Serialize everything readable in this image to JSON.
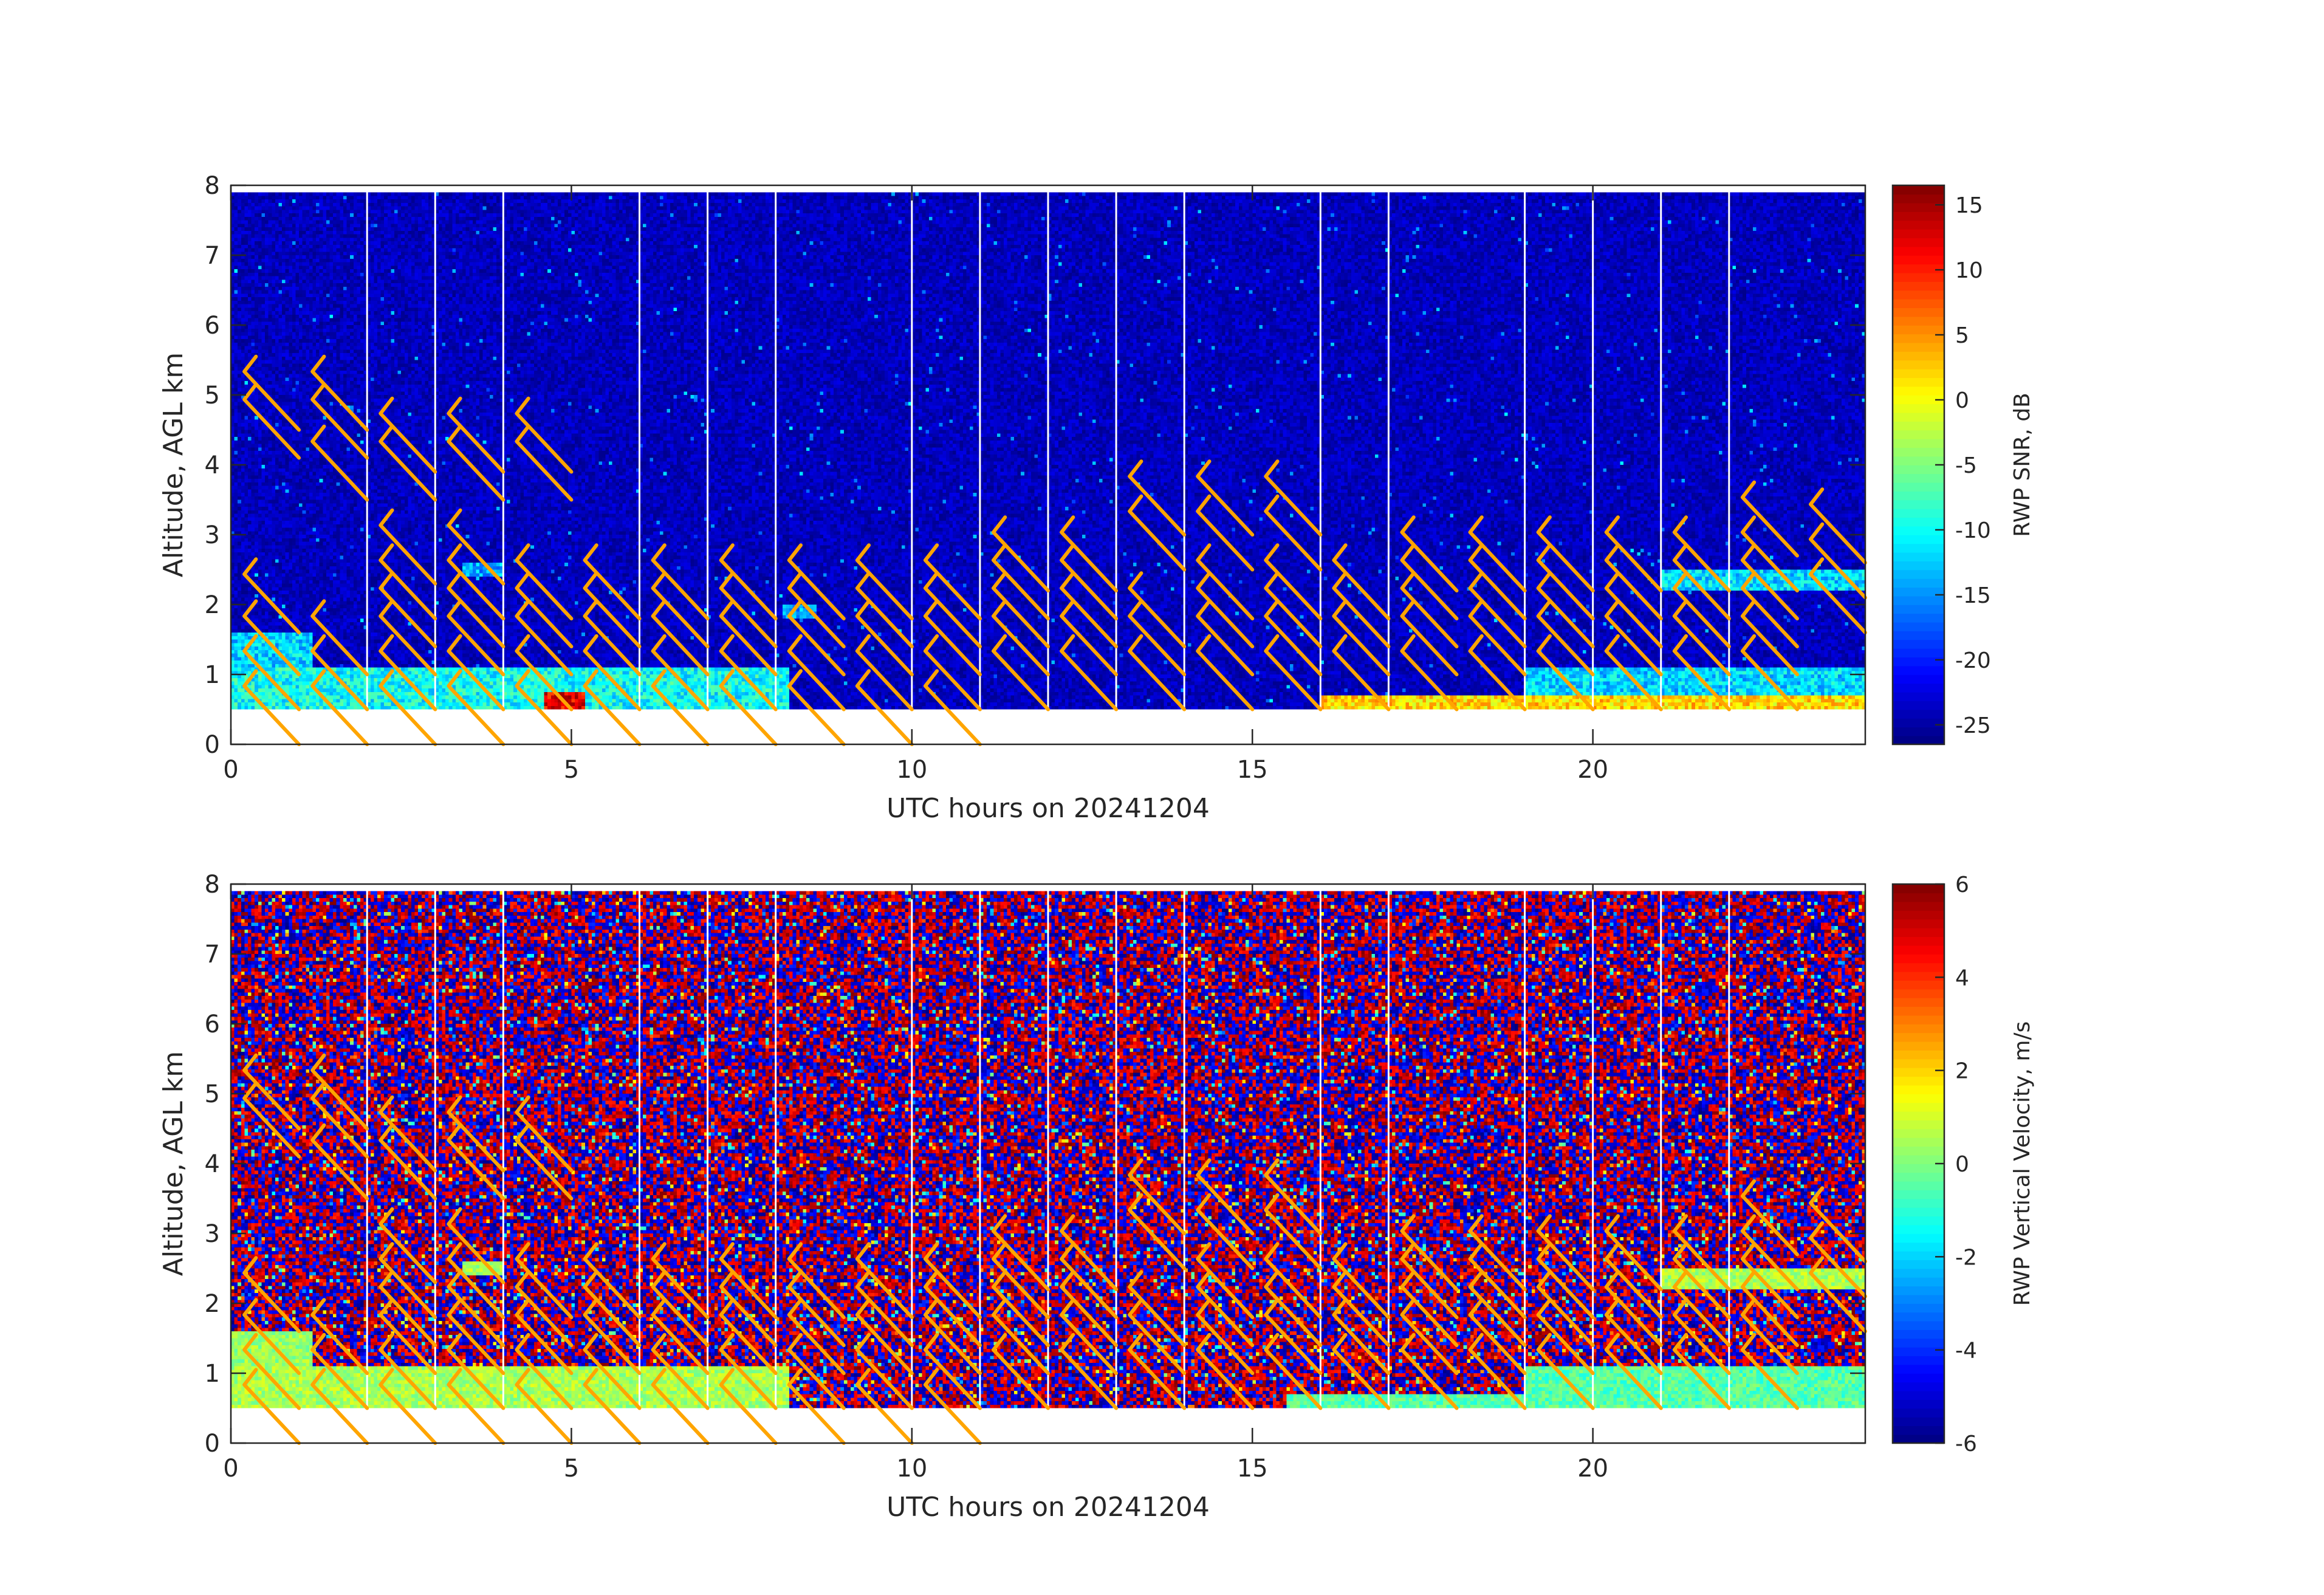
{
  "chart_data": [
    {
      "type": "heatmap",
      "field": "snr",
      "xlabel": "UTC hours on 20241204",
      "ylabel": "Altitude, AGL km",
      "xlim": [
        0,
        24
      ],
      "ylim": [
        0,
        8
      ],
      "x_ticks": [
        0,
        5,
        10,
        15,
        20
      ],
      "y_ticks": [
        0,
        1,
        2,
        3,
        4,
        5,
        6,
        7,
        8
      ],
      "x_tick_labels": [
        "0",
        "5",
        "10",
        "15",
        "20"
      ],
      "y_tick_labels": [
        "0",
        "1",
        "2",
        "3",
        "4",
        "5",
        "6",
        "7",
        "8"
      ],
      "colorbar": {
        "label": "RWP SNR, dB",
        "range": [
          -26.5,
          16.5
        ],
        "ticks": [
          15,
          10,
          5,
          0,
          -5,
          -10,
          -15,
          -20,
          -25
        ],
        "tick_labels": [
          "15",
          "10",
          "5",
          "0",
          "-5",
          "-10",
          "-15",
          "-20",
          "-25"
        ],
        "colormap": "jet"
      },
      "data_altitude_range_km": [
        0.5,
        7.9
      ],
      "data_time_range_h": [
        0,
        24
      ],
      "background_snr_db": -24,
      "gap_times_h": [
        2,
        3,
        4,
        6,
        7,
        8,
        10,
        11,
        12,
        13,
        14,
        16,
        17,
        19,
        20,
        21,
        22
      ],
      "boundary_layer_bands": [
        {
          "x0": 0,
          "x1": 8.2,
          "y0": 0.5,
          "y1": 1.1,
          "snr_db": -10
        },
        {
          "x0": 0,
          "x1": 1.2,
          "y0": 1.1,
          "y1": 1.6,
          "snr_db": -12
        },
        {
          "x0": 4.6,
          "x1": 5.2,
          "y0": 0.5,
          "y1": 0.75,
          "snr_db": 12
        },
        {
          "x0": 16,
          "x1": 24,
          "y0": 0.5,
          "y1": 0.7,
          "snr_db": 2
        },
        {
          "x0": 19,
          "x1": 24,
          "y0": 0.7,
          "y1": 1.1,
          "snr_db": -12
        },
        {
          "x0": 21,
          "x1": 24,
          "y0": 2.2,
          "y1": 2.5,
          "snr_db": -12
        },
        {
          "x0": 3.4,
          "x1": 4.0,
          "y0": 2.4,
          "y1": 2.6,
          "snr_db": -14
        },
        {
          "x0": 8.1,
          "x1": 8.6,
          "y0": 1.8,
          "y1": 2.0,
          "snr_db": -14
        }
      ]
    },
    {
      "type": "heatmap",
      "field": "vertical_velocity",
      "xlabel": "UTC hours on 20241204",
      "ylabel": "Altitude, AGL km",
      "xlim": [
        0,
        24
      ],
      "ylim": [
        0,
        8
      ],
      "x_ticks": [
        0,
        5,
        10,
        15,
        20
      ],
      "y_ticks": [
        0,
        1,
        2,
        3,
        4,
        5,
        6,
        7,
        8
      ],
      "x_tick_labels": [
        "0",
        "5",
        "10",
        "15",
        "20"
      ],
      "y_tick_labels": [
        "0",
        "1",
        "2",
        "3",
        "4",
        "5",
        "6",
        "7",
        "8"
      ],
      "colorbar": {
        "label": "RWP Vertical Velocity, m/s",
        "range": [
          -6,
          6
        ],
        "ticks": [
          6,
          4,
          2,
          0,
          -2,
          -4,
          -6
        ],
        "tick_labels": [
          "6",
          "4",
          "2",
          "0",
          "-2",
          "-4",
          "-6"
        ],
        "colormap": "jet"
      },
      "data_altitude_range_km": [
        0.5,
        7.9
      ],
      "data_time_range_h": [
        0,
        24
      ],
      "noise_range_m_s": [
        -6,
        6
      ],
      "gap_times_h": [
        2,
        3,
        4,
        6,
        7,
        8,
        10,
        11,
        12,
        13,
        14,
        16,
        17,
        19,
        20,
        21,
        22
      ],
      "boundary_layer_bands": [
        {
          "x0": 0,
          "x1": 8.2,
          "y0": 0.5,
          "y1": 1.1,
          "w": 0.5
        },
        {
          "x0": 0,
          "x1": 1.2,
          "y0": 1.1,
          "y1": 1.6,
          "w": 0.3
        },
        {
          "x0": 15.5,
          "x1": 24,
          "y0": 0.5,
          "y1": 0.7,
          "w": -0.5
        },
        {
          "x0": 19,
          "x1": 24,
          "y0": 0.7,
          "y1": 1.1,
          "w": -0.5
        },
        {
          "x0": 21,
          "x1": 24,
          "y0": 2.2,
          "y1": 2.5,
          "w": 0.5
        },
        {
          "x0": 3.4,
          "x1": 4.0,
          "y0": 2.4,
          "y1": 2.6,
          "w": 0.5
        }
      ]
    }
  ],
  "wind_barbs": {
    "color": "#ffa500",
    "direction_deg": 315,
    "stations": [
      {
        "t": 1,
        "alts": [
          0,
          0.5,
          1,
          1.6,
          4.1,
          4.5
        ]
      },
      {
        "t": 2,
        "alts": [
          0,
          0.5,
          1,
          3.5,
          4.1,
          4.5
        ]
      },
      {
        "t": 3,
        "alts": [
          0,
          0.5,
          1,
          1.4,
          1.8,
          2.3,
          3.5,
          3.9
        ]
      },
      {
        "t": 4,
        "alts": [
          0,
          0.5,
          1,
          1.4,
          1.8,
          2.3,
          3.5,
          3.9
        ]
      },
      {
        "t": 5,
        "alts": [
          0,
          0.5,
          1,
          1.4,
          1.8,
          3.5,
          3.9
        ]
      },
      {
        "t": 6,
        "alts": [
          0,
          0.5,
          1,
          1.4,
          1.8
        ]
      },
      {
        "t": 7,
        "alts": [
          0,
          0.5,
          1,
          1.4,
          1.8
        ]
      },
      {
        "t": 8,
        "alts": [
          0,
          0.5,
          1,
          1.4,
          1.8
        ]
      },
      {
        "t": 9,
        "alts": [
          0,
          0.5,
          1,
          1.4,
          1.8
        ]
      },
      {
        "t": 10,
        "alts": [
          0,
          0.5,
          1,
          1.4,
          1.8
        ]
      },
      {
        "t": 11,
        "alts": [
          0,
          0.5,
          1,
          1.4,
          1.8
        ]
      },
      {
        "t": 12,
        "alts": [
          0.5,
          1,
          1.4,
          1.8,
          2.2
        ]
      },
      {
        "t": 13,
        "alts": [
          0.5,
          1,
          1.4,
          1.8,
          2.2
        ]
      },
      {
        "t": 14,
        "alts": [
          0.5,
          1,
          1.4,
          2.5,
          3.0
        ]
      },
      {
        "t": 15,
        "alts": [
          0.5,
          1,
          1.4,
          1.8,
          2.5,
          3.0
        ]
      },
      {
        "t": 16,
        "alts": [
          0.5,
          1,
          1.4,
          1.8,
          2.5,
          3.0
        ]
      },
      {
        "t": 17,
        "alts": [
          0.5,
          1,
          1.4,
          1.8
        ]
      },
      {
        "t": 18,
        "alts": [
          0.5,
          1,
          1.4,
          1.8,
          2.2
        ]
      },
      {
        "t": 19,
        "alts": [
          0.5,
          1,
          1.4,
          1.8,
          2.2
        ]
      },
      {
        "t": 20,
        "alts": [
          0.5,
          1,
          1.4,
          1.8,
          2.2
        ]
      },
      {
        "t": 21,
        "alts": [
          0.5,
          1,
          1.4,
          1.8,
          2.2
        ]
      },
      {
        "t": 22,
        "alts": [
          0.5,
          1,
          1.4,
          1.8,
          2.2
        ]
      },
      {
        "t": 23,
        "alts": [
          0.5,
          1,
          1.4,
          1.8,
          2.2,
          2.7
        ]
      },
      {
        "t": 24,
        "alts": [
          1.6,
          2.1,
          2.6
        ]
      }
    ]
  }
}
